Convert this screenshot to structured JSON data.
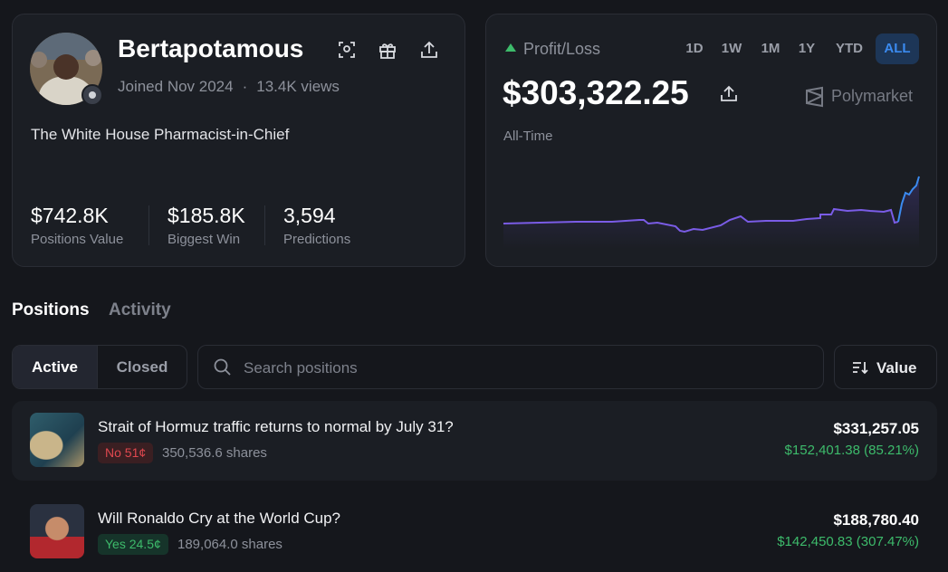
{
  "profile": {
    "name": "Bertapotamous",
    "joined": "Joined Nov 2024",
    "views": "13.4K views",
    "bio": "The White House Pharmacist-in-Chief",
    "stats": [
      {
        "value": "$742.8K",
        "label": "Positions Value"
      },
      {
        "value": "$185.8K",
        "label": "Biggest Win"
      },
      {
        "value": "3,594",
        "label": "Predictions"
      }
    ]
  },
  "pnl": {
    "label": "Profit/Loss",
    "ranges": [
      "1D",
      "1W",
      "1M",
      "1Y",
      "YTD",
      "ALL"
    ],
    "active_range": 5,
    "amount": "$303,322.25",
    "brand": "Polymarket",
    "period": "All-Time"
  },
  "tabs": [
    "Positions",
    "Activity"
  ],
  "active_tab": 0,
  "filters": [
    "Active",
    "Closed"
  ],
  "active_filter": 0,
  "search_placeholder": "Search positions",
  "sort": "Value",
  "positions": [
    {
      "title": "Strait of Hormuz traffic returns to normal by July 31?",
      "outcome": "No 51¢",
      "outcome_color": "red",
      "shares": "350,536.6 shares",
      "value": "$331,257.05",
      "pnl": "$152,401.38 (85.21%)"
    },
    {
      "title": "Will Ronaldo Cry at the World Cup?",
      "outcome": "Yes 24.5¢",
      "outcome_color": "green",
      "shares": "189,064.0 shares",
      "value": "$188,780.40",
      "pnl": "$142,450.83 (307.47%)"
    }
  ]
}
